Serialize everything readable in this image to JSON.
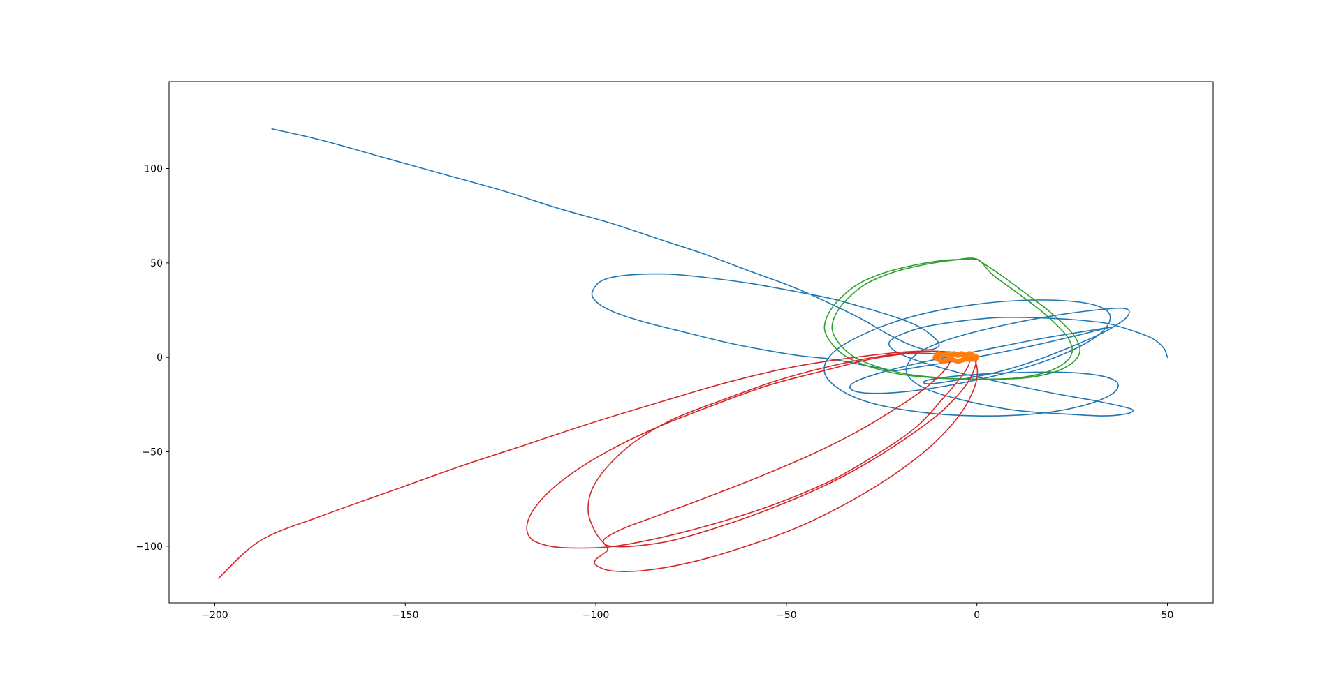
{
  "chart_data": {
    "type": "line",
    "title": "",
    "xlabel": "",
    "ylabel": "",
    "xlim": [
      -212,
      62
    ],
    "ylim": [
      -130,
      146
    ],
    "x_ticks": [
      -200,
      -150,
      -100,
      -50,
      0,
      50
    ],
    "y_ticks": [
      -100,
      -50,
      0,
      50,
      100
    ],
    "x_tick_labels": [
      "−200",
      "−150",
      "−100",
      "−50",
      "0",
      "50"
    ],
    "y_tick_labels": [
      "−100",
      "−50",
      "0",
      "50",
      "100"
    ],
    "grid": false,
    "legend": "none",
    "colors": {
      "blue": "#1f77b4",
      "green": "#2ca02c",
      "red": "#d62728",
      "orange": "#ff7f0e",
      "frame": "#000000"
    },
    "series": [
      {
        "color": "#1f77b4",
        "values": [
          [
            50,
            0
          ],
          [
            49,
            5
          ],
          [
            46,
            10
          ],
          [
            41,
            14
          ],
          [
            34,
            18
          ],
          [
            25,
            20
          ],
          [
            15,
            21
          ],
          [
            5,
            21
          ],
          [
            -5,
            19
          ],
          [
            -14,
            16
          ],
          [
            -20,
            12
          ],
          [
            -23,
            8
          ],
          [
            -22,
            4
          ],
          [
            -18,
            0
          ],
          [
            -12,
            -4
          ],
          [
            -3,
            -9
          ],
          [
            8,
            -14
          ],
          [
            20,
            -19
          ],
          [
            31,
            -23
          ],
          [
            38,
            -26
          ],
          [
            41,
            -28
          ],
          [
            39,
            -30
          ],
          [
            33,
            -31
          ],
          [
            23,
            -30
          ],
          [
            10,
            -28
          ],
          [
            -3,
            -23
          ],
          [
            -13,
            -17
          ],
          [
            -18,
            -10
          ],
          [
            -18,
            -3
          ],
          [
            -14,
            4
          ],
          [
            -5,
            11
          ],
          [
            7,
            17
          ],
          [
            20,
            22
          ],
          [
            31,
            25
          ],
          [
            38,
            26
          ],
          [
            40,
            24
          ],
          [
            38,
            19
          ],
          [
            32,
            12
          ],
          [
            24,
            5
          ],
          [
            15,
            -2
          ],
          [
            5,
            -8
          ],
          [
            -5,
            -12
          ],
          [
            -12,
            -14
          ],
          [
            -14,
            -13
          ],
          [
            -10,
            -11
          ],
          [
            0,
            -9
          ],
          [
            12,
            -8
          ],
          [
            24,
            -8
          ],
          [
            33,
            -10
          ],
          [
            37,
            -14
          ],
          [
            35,
            -20
          ],
          [
            27,
            -26
          ],
          [
            15,
            -30
          ],
          [
            0,
            -31
          ],
          [
            -15,
            -29
          ],
          [
            -28,
            -24
          ],
          [
            -36,
            -17
          ],
          [
            -40,
            -8
          ],
          [
            -38,
            2
          ],
          [
            -30,
            12
          ],
          [
            -18,
            21
          ],
          [
            -4,
            27
          ],
          [
            10,
            30
          ],
          [
            23,
            30
          ],
          [
            32,
            27
          ],
          [
            35,
            21
          ],
          [
            32,
            12
          ],
          [
            23,
            2
          ],
          [
            10,
            -7
          ],
          [
            -5,
            -14
          ],
          [
            -18,
            -18
          ],
          [
            -28,
            -19
          ],
          [
            -33,
            -17
          ],
          [
            -32,
            -13
          ],
          [
            -25,
            -8
          ],
          [
            -13,
            -2
          ],
          [
            2,
            4
          ],
          [
            17,
            10
          ],
          [
            29,
            14
          ],
          [
            35,
            16
          ],
          [
            33,
            15
          ],
          [
            25,
            11
          ],
          [
            12,
            5
          ],
          [
            -3,
            -1
          ],
          [
            -15,
            -5
          ],
          [
            -21,
            -7
          ],
          [
            -23,
            -7
          ],
          [
            -25,
            -6
          ],
          [
            -30,
            -4
          ],
          [
            -38,
            -1
          ],
          [
            -47,
            1
          ],
          [
            -56,
            4
          ],
          [
            -66,
            8
          ],
          [
            -76,
            13
          ],
          [
            -86,
            18
          ],
          [
            -94,
            23
          ],
          [
            -99,
            28
          ],
          [
            -101,
            33
          ],
          [
            -100,
            38
          ],
          [
            -98,
            41
          ],
          [
            -94,
            43
          ],
          [
            -88,
            44
          ],
          [
            -80,
            44
          ],
          [
            -70,
            42
          ],
          [
            -59,
            39
          ],
          [
            -48,
            35
          ],
          [
            -38,
            31
          ],
          [
            -29,
            26
          ],
          [
            -21,
            21
          ],
          [
            -15,
            16
          ],
          [
            -11,
            10
          ],
          [
            -10,
            6
          ],
          [
            -13,
            4
          ],
          [
            -18,
            7
          ],
          [
            -24,
            13
          ],
          [
            -30,
            20
          ],
          [
            -38,
            28
          ],
          [
            -48,
            37
          ],
          [
            -60,
            46
          ],
          [
            -72,
            55
          ],
          [
            -84,
            63
          ],
          [
            -96,
            71
          ],
          [
            -110,
            79
          ],
          [
            -124,
            88
          ],
          [
            -140,
            97
          ],
          [
            -156,
            106
          ],
          [
            -172,
            115
          ],
          [
            -185,
            121
          ]
        ]
      },
      {
        "color": "#2ca02c",
        "values": [
          [
            0,
            52
          ],
          [
            -8,
            51.5
          ],
          [
            -16,
            49
          ],
          [
            -24,
            45
          ],
          [
            -31,
            39
          ],
          [
            -36,
            31
          ],
          [
            -39,
            23
          ],
          [
            -40,
            15
          ],
          [
            -38,
            7
          ],
          [
            -34,
            0
          ],
          [
            -28,
            -5
          ],
          [
            -20,
            -9
          ],
          [
            -10,
            -11
          ],
          [
            0,
            -11.5
          ],
          [
            10,
            -11
          ],
          [
            18,
            -8
          ],
          [
            23,
            -3
          ],
          [
            25,
            3
          ],
          [
            24,
            10
          ],
          [
            21,
            17
          ],
          [
            16,
            26
          ],
          [
            10,
            35
          ],
          [
            4,
            44
          ],
          [
            0,
            52
          ],
          [
            -6,
            51.5
          ],
          [
            -14,
            49
          ],
          [
            -22,
            45
          ],
          [
            -29,
            39
          ],
          [
            -34,
            31
          ],
          [
            -37,
            23
          ],
          [
            -38,
            15
          ],
          [
            -36,
            7
          ],
          [
            -32,
            0
          ],
          [
            -26,
            -5
          ],
          [
            -18,
            -9
          ],
          [
            -8,
            -11
          ],
          [
            2,
            -11.5
          ],
          [
            12,
            -11
          ],
          [
            20,
            -8
          ],
          [
            25,
            -3
          ],
          [
            27,
            3
          ],
          [
            26,
            10
          ],
          [
            23,
            17
          ],
          [
            18,
            26
          ],
          [
            12,
            35
          ],
          [
            6,
            44
          ],
          [
            0,
            52
          ]
        ]
      },
      {
        "color": "#d62728",
        "values": [
          [
            0,
            0
          ],
          [
            -0.5,
            -5
          ],
          [
            -2,
            -12
          ],
          [
            -5,
            -20
          ],
          [
            -10,
            -30
          ],
          [
            -18,
            -42
          ],
          [
            -28,
            -55
          ],
          [
            -40,
            -68
          ],
          [
            -54,
            -80
          ],
          [
            -68,
            -90
          ],
          [
            -80,
            -97
          ],
          [
            -90,
            -100
          ],
          [
            -96,
            -100
          ],
          [
            -98,
            -98
          ],
          [
            -97,
            -95
          ],
          [
            -92,
            -90
          ],
          [
            -84,
            -84
          ],
          [
            -72,
            -75
          ],
          [
            -58,
            -64
          ],
          [
            -44,
            -52
          ],
          [
            -32,
            -40
          ],
          [
            -22,
            -28
          ],
          [
            -14,
            -17
          ],
          [
            -9,
            -8
          ],
          [
            -7,
            -2
          ],
          [
            -8,
            1
          ],
          [
            -12,
            2
          ],
          [
            -18,
            2
          ],
          [
            -28,
            -1
          ],
          [
            -40,
            -7
          ],
          [
            -55,
            -15
          ],
          [
            -70,
            -26
          ],
          [
            -85,
            -38
          ],
          [
            -98,
            -51
          ],
          [
            -108,
            -64
          ],
          [
            -115,
            -77
          ],
          [
            -118,
            -88
          ],
          [
            -117,
            -96
          ],
          [
            -112,
            -100
          ],
          [
            -105,
            -101
          ],
          [
            -95,
            -100
          ],
          [
            -82,
            -95
          ],
          [
            -67,
            -87
          ],
          [
            -52,
            -77
          ],
          [
            -38,
            -65
          ],
          [
            -26,
            -51
          ],
          [
            -16,
            -37
          ],
          [
            -9,
            -22
          ],
          [
            -4,
            -10
          ],
          [
            -2,
            -3
          ],
          [
            -3,
            0
          ],
          [
            -7,
            2
          ],
          [
            -14,
            3
          ],
          [
            -24,
            1
          ],
          [
            -37,
            -4
          ],
          [
            -52,
            -12
          ],
          [
            -66,
            -22
          ],
          [
            -80,
            -33
          ],
          [
            -90,
            -45
          ],
          [
            -97,
            -58
          ],
          [
            -101,
            -70
          ],
          [
            -102,
            -82
          ],
          [
            -100,
            -93
          ],
          [
            -97,
            -101
          ],
          [
            -98,
            -104
          ],
          [
            -100,
            -107
          ],
          [
            -100,
            -110
          ],
          [
            -96,
            -113
          ],
          [
            -88,
            -113
          ],
          [
            -76,
            -109
          ],
          [
            -62,
            -101
          ],
          [
            -47,
            -90
          ],
          [
            -33,
            -76
          ],
          [
            -21,
            -61
          ],
          [
            -11,
            -45
          ],
          [
            -4,
            -29
          ],
          [
            -0.5,
            -15
          ],
          [
            0,
            -5
          ],
          [
            -2,
            1
          ],
          [
            -8,
            3
          ],
          [
            -18,
            3
          ],
          [
            -32,
            0
          ],
          [
            -48,
            -5
          ],
          [
            -65,
            -13
          ],
          [
            -82,
            -23
          ],
          [
            -100,
            -34
          ],
          [
            -118,
            -46
          ],
          [
            -136,
            -58
          ],
          [
            -154,
            -71
          ],
          [
            -172,
            -84
          ],
          [
            -188,
            -97
          ],
          [
            -199,
            -117
          ]
        ]
      },
      {
        "color": "#ff7f0e",
        "values": [
          [
            -11,
            0
          ],
          [
            -10,
            2
          ],
          [
            -9,
            1
          ],
          [
            -8,
            2
          ],
          [
            -7,
            1
          ],
          [
            -6,
            2
          ],
          [
            -5,
            1
          ],
          [
            -4,
            2
          ],
          [
            -3,
            1
          ],
          [
            -2,
            2
          ],
          [
            -1,
            1
          ],
          [
            0,
            0
          ],
          [
            -1,
            -1
          ],
          [
            -3,
            -1
          ],
          [
            -5,
            -2
          ],
          [
            -7,
            -1
          ],
          [
            -9,
            -2
          ],
          [
            -11,
            0
          ]
        ]
      }
    ]
  }
}
